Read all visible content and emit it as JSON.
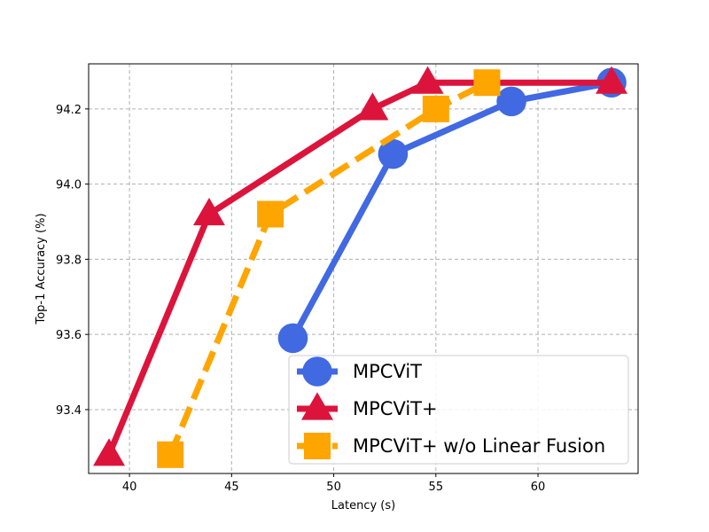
{
  "chart_data": {
    "type": "line",
    "xlabel": "Latency (s)",
    "ylabel": "Top-1 Accuracy (%)",
    "xlim": [
      38,
      64.9
    ],
    "ylim": [
      93.23,
      94.32
    ],
    "xticks": [
      40,
      45,
      50,
      55,
      60
    ],
    "yticks": [
      93.4,
      93.6,
      93.8,
      94.0,
      94.2
    ],
    "xtick_labels": [
      "40",
      "45",
      "50",
      "55",
      "60"
    ],
    "ytick_labels": [
      "93.4",
      "93.6",
      "93.8",
      "94.0",
      "94.2"
    ],
    "grid": true,
    "legend_position": "lower-right",
    "series": [
      {
        "name": "MPCViT",
        "color": "#4169e1",
        "marker": "circle",
        "linestyle": "solid",
        "x": [
          48.0,
          52.9,
          58.7,
          63.6
        ],
        "y": [
          93.59,
          94.08,
          94.22,
          94.27
        ]
      },
      {
        "name": "MPCViT+",
        "color": "#dc143c",
        "marker": "triangle",
        "linestyle": "solid",
        "x": [
          39.0,
          43.9,
          51.9,
          54.6,
          63.6
        ],
        "y": [
          93.28,
          93.92,
          94.2,
          94.27,
          94.27
        ]
      },
      {
        "name": "MPCViT+ w/o Linear Fusion",
        "color": "#ffa500",
        "marker": "square",
        "linestyle": "dashed",
        "x": [
          42.0,
          46.9,
          55.0,
          57.5
        ],
        "y": [
          93.28,
          93.92,
          94.2,
          94.27
        ]
      }
    ]
  }
}
